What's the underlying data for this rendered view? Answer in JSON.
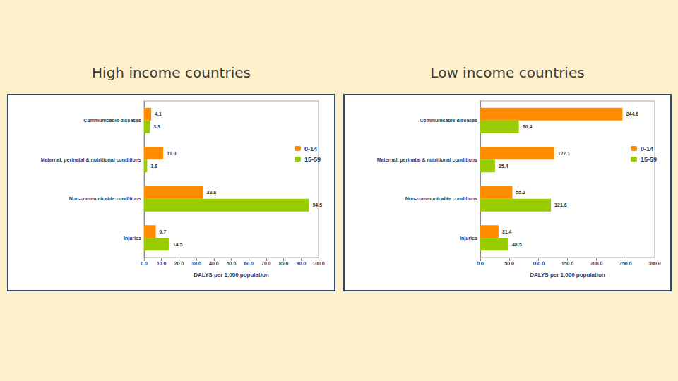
{
  "chart_data": [
    {
      "type": "bar",
      "orientation": "horizontal",
      "title": "High income countries",
      "x_label": "DALYS per 1,000 population",
      "categories": [
        "Communicable diseases",
        "Maternal, perinatal & nutritional conditions",
        "Non-communicable conditions",
        "Injuries"
      ],
      "series": [
        {
          "name": "0-14",
          "color": "#ff8c00",
          "values": [
            4.1,
            11.0,
            33.8,
            6.7
          ],
          "value_labels": [
            "4.1",
            "11.0",
            "33.8",
            "6.7"
          ]
        },
        {
          "name": "15-59",
          "color": "#99cc00",
          "values": [
            3.3,
            1.8,
            94.5,
            14.5
          ],
          "value_labels": [
            "3.3",
            "1.8",
            "94.5",
            "14.5"
          ]
        }
      ],
      "xlim": [
        0,
        100
      ],
      "xticks": [
        {
          "value": 0,
          "label": "0.0"
        },
        {
          "value": 10,
          "label": "10.0"
        },
        {
          "value": 20,
          "label": "20.0"
        },
        {
          "value": 30,
          "label": "30.0"
        },
        {
          "value": 40,
          "label": "40.0"
        },
        {
          "value": 50,
          "label": "50.0"
        },
        {
          "value": 60,
          "label": "60.0"
        },
        {
          "value": 70,
          "label": "70.0"
        },
        {
          "value": 80,
          "label": "80.0"
        },
        {
          "value": 90,
          "label": "90.0"
        },
        {
          "value": 100,
          "label": "100.0"
        }
      ],
      "legend": "right",
      "data_labels": true,
      "grid": false
    },
    {
      "type": "bar",
      "orientation": "horizontal",
      "title": "Low income countries",
      "x_label": "DALYS per 1,000 population",
      "categories": [
        "Communicable diseases",
        "Maternal, perinatal & nutritional conditions",
        "Non-communicable conditions",
        "Injuries"
      ],
      "series": [
        {
          "name": "0-14",
          "color": "#ff8c00",
          "values": [
            244.6,
            127.1,
            55.2,
            31.4
          ],
          "value_labels": [
            "244.6",
            "127.1",
            "55.2",
            "31.4"
          ]
        },
        {
          "name": "15-59",
          "color": "#99cc00",
          "values": [
            66.4,
            25.4,
            121.6,
            48.5
          ],
          "value_labels": [
            "66.4",
            "25.4",
            "121.6",
            "48.5"
          ]
        }
      ],
      "xlim": [
        0,
        300
      ],
      "xticks": [
        {
          "value": 0,
          "label": "0.0"
        },
        {
          "value": 50,
          "label": "50.0"
        },
        {
          "value": 100,
          "label": "100.0"
        },
        {
          "value": 150,
          "label": "150.0"
        },
        {
          "value": 200,
          "label": "200.0"
        },
        {
          "value": 250,
          "label": "250.0"
        },
        {
          "value": 300,
          "label": "300.0"
        }
      ],
      "legend": "right",
      "data_labels": true,
      "grid": false
    }
  ]
}
